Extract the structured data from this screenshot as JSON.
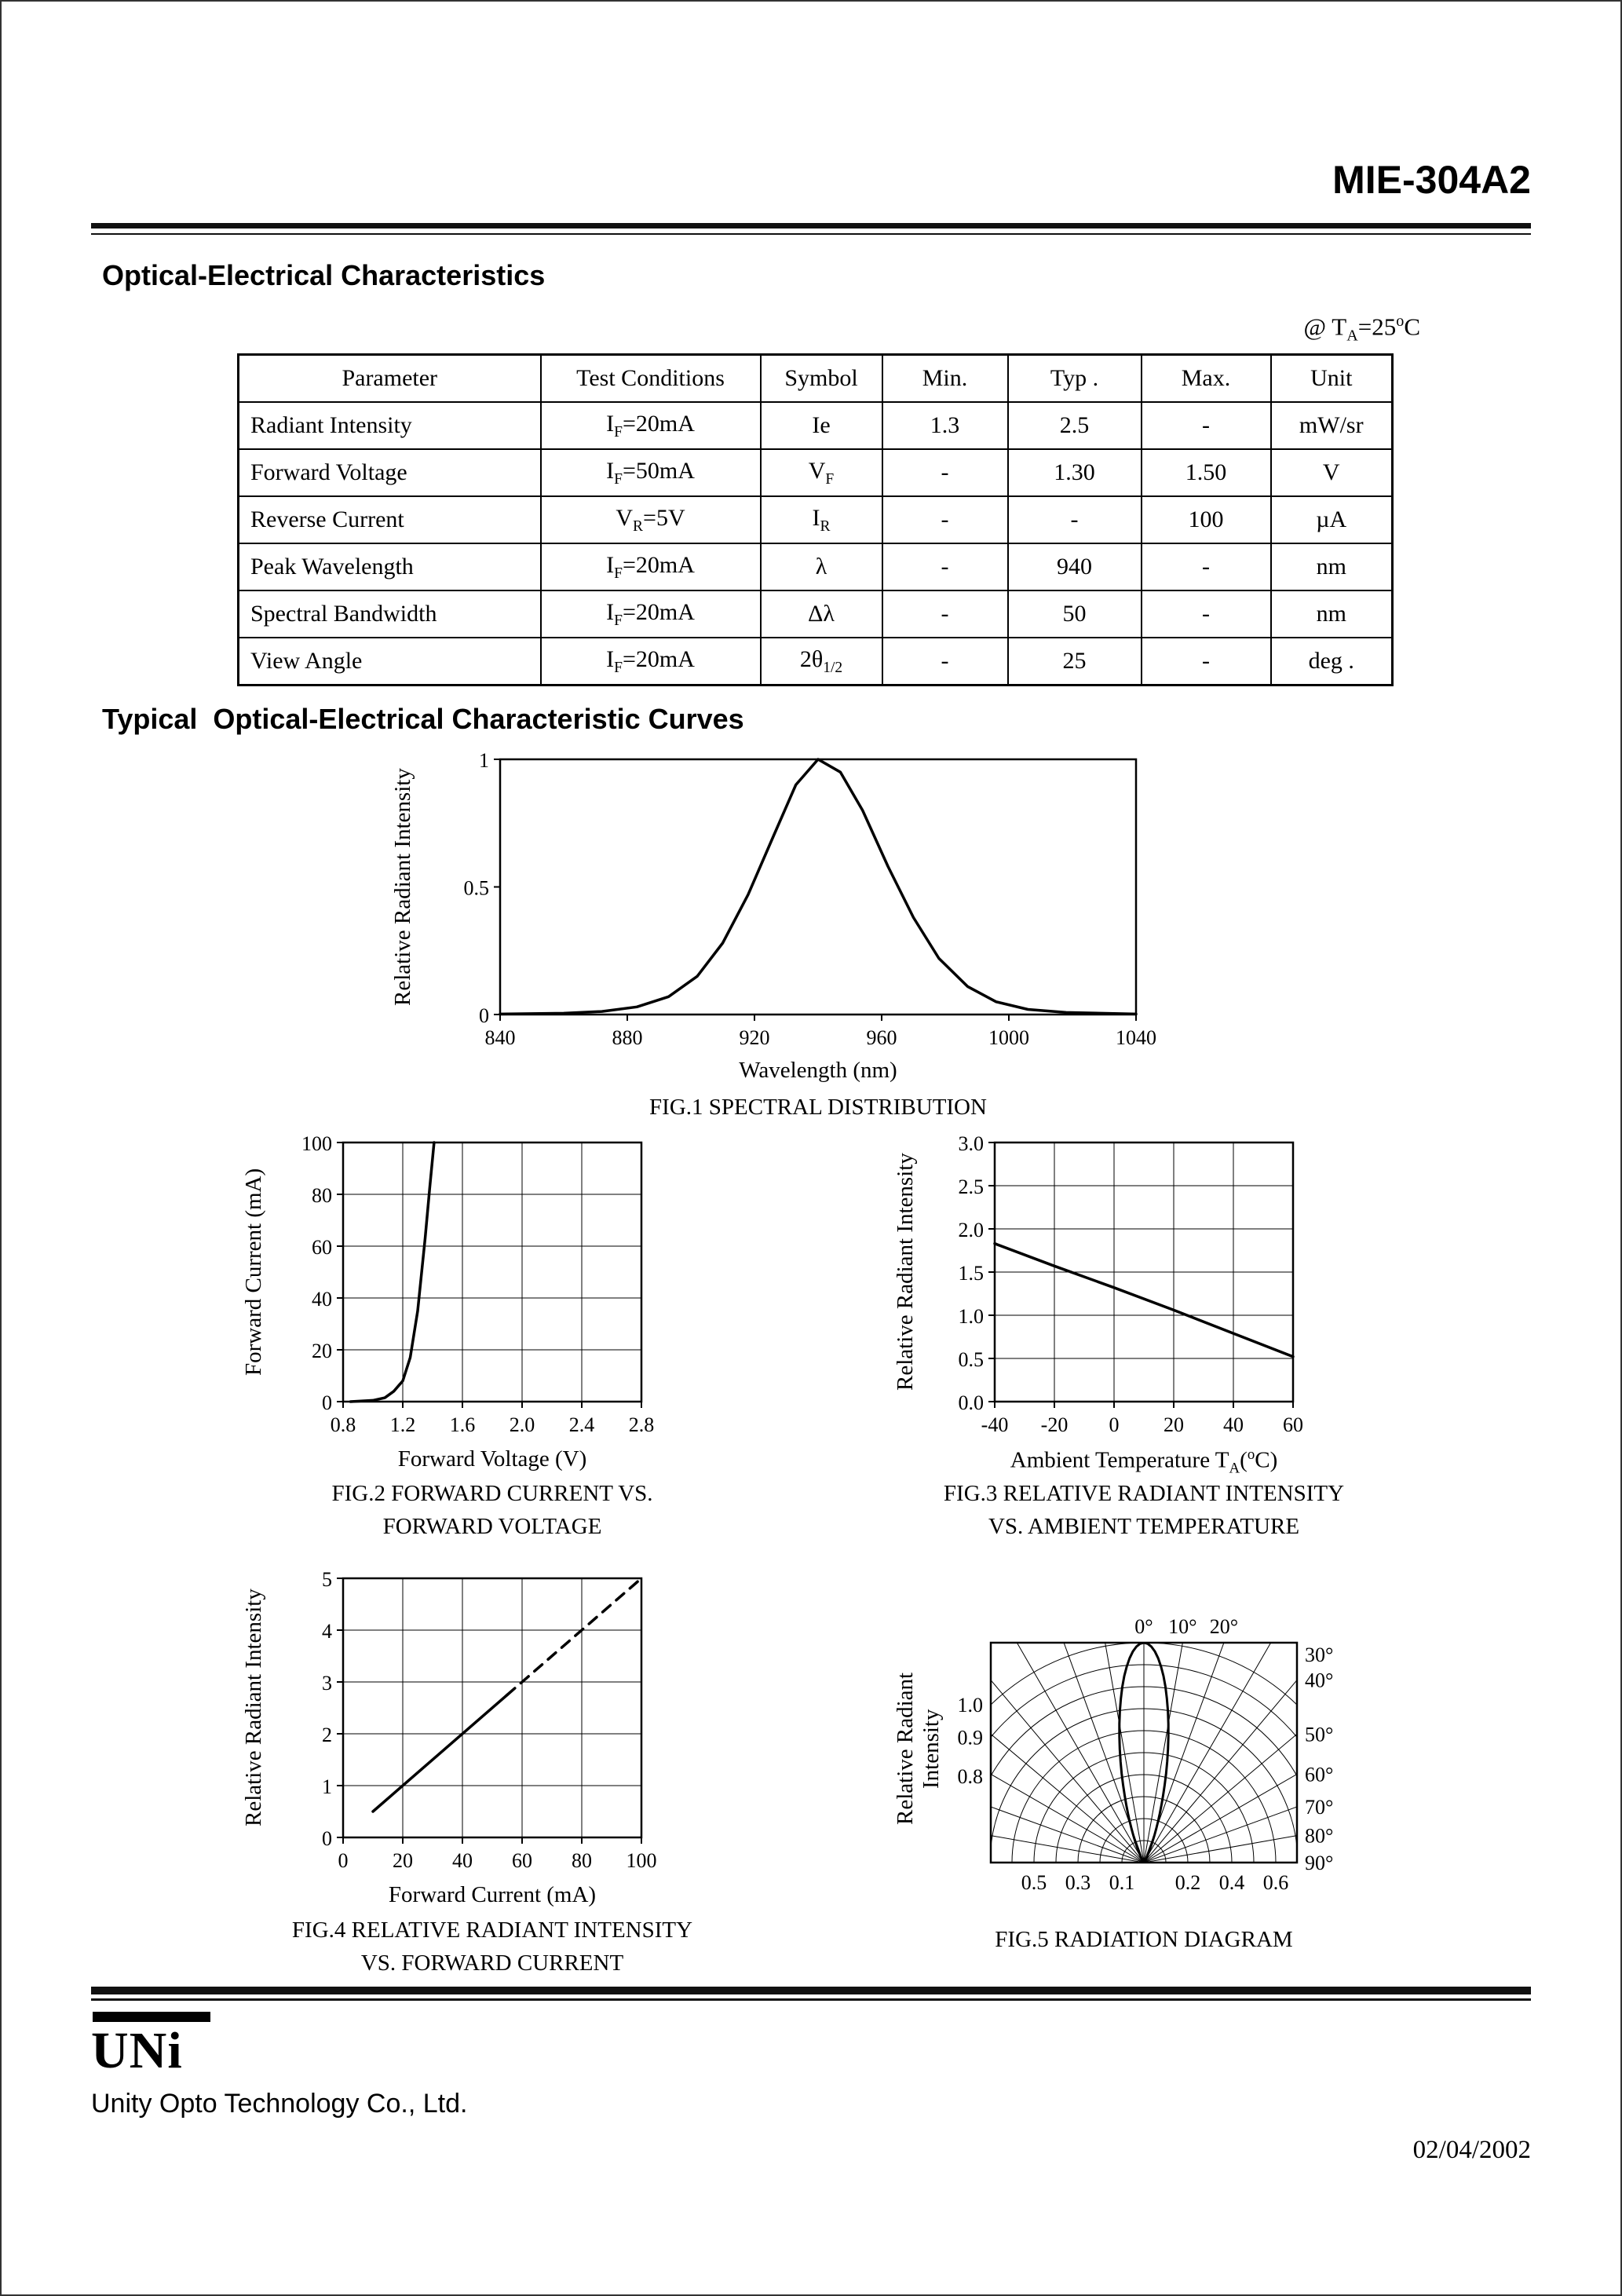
{
  "page": {
    "part_number": "MIE-304A2",
    "section1_title": "Optical-Electrical Characteristics",
    "section2_title": "Typical  Optical-Electrical Characteristic Curves",
    "condition_note": [
      "@ T",
      {
        "sub": "A"
      },
      "=25",
      {
        "sup": "o"
      },
      "C"
    ],
    "footer": {
      "logo_text": "UNi",
      "company": "Unity Opto Technology Co., Ltd.",
      "date": "02/04/2002"
    }
  },
  "table": {
    "headers": [
      "Parameter",
      "Test Conditions",
      "Symbol",
      "Min.",
      "Typ .",
      "Max.",
      "Unit"
    ],
    "rows": [
      [
        [
          "Radiant Intensity"
        ],
        [
          "I",
          {
            "sub": "F"
          },
          "=20mA"
        ],
        [
          "Ie"
        ],
        [
          "1.3"
        ],
        [
          "2.5"
        ],
        [
          "-"
        ],
        [
          "mW/sr"
        ]
      ],
      [
        [
          "Forward Voltage"
        ],
        [
          "I",
          {
            "sub": "F"
          },
          "=50mA"
        ],
        [
          "V",
          {
            "sub": "F"
          }
        ],
        [
          "-"
        ],
        [
          "1.30"
        ],
        [
          "1.50"
        ],
        [
          "V"
        ]
      ],
      [
        [
          "Reverse Current"
        ],
        [
          "V",
          {
            "sub": "R"
          },
          "=5V"
        ],
        [
          "I",
          {
            "sub": "R"
          }
        ],
        [
          "-"
        ],
        [
          "-"
        ],
        [
          "100"
        ],
        [
          "µA"
        ]
      ],
      [
        [
          "Peak Wavelength"
        ],
        [
          "I",
          {
            "sub": "F"
          },
          "=20mA"
        ],
        [
          "λ"
        ],
        [
          "-"
        ],
        [
          "940"
        ],
        [
          "-"
        ],
        [
          "nm"
        ]
      ],
      [
        [
          "Spectral Bandwidth"
        ],
        [
          "I",
          {
            "sub": "F"
          },
          "=20mA"
        ],
        [
          "Δλ"
        ],
        [
          "-"
        ],
        [
          "50"
        ],
        [
          "-"
        ],
        [
          "nm"
        ]
      ],
      [
        [
          "View Angle"
        ],
        [
          "I",
          {
            "sub": "F"
          },
          "=20mA"
        ],
        [
          "2θ",
          {
            "sub": "1/2"
          }
        ],
        [
          "-"
        ],
        [
          "25"
        ],
        [
          "-"
        ],
        [
          "deg ."
        ]
      ]
    ]
  },
  "chart_data": [
    {
      "id": "fig1",
      "type": "line",
      "title": "FIG.1 SPECTRAL DISTRIBUTION",
      "xlabel": "Wavelength (nm)",
      "ylabel": "Relative Radiant Intensity",
      "xlim": [
        840,
        1040
      ],
      "ylim": [
        0,
        1
      ],
      "xticks": [
        "840",
        "880",
        "920",
        "960",
        "1000",
        "1040"
      ],
      "yticks": [
        "0",
        "0.5",
        "1"
      ],
      "grid": false,
      "series": [
        {
          "name": "spectral-distribution",
          "dash": false,
          "points": [
            [
              840,
              0.002
            ],
            [
              860,
              0.005
            ],
            [
              872,
              0.012
            ],
            [
              883,
              0.03
            ],
            [
              893,
              0.07
            ],
            [
              902,
              0.15
            ],
            [
              910,
              0.28
            ],
            [
              918,
              0.47
            ],
            [
              926,
              0.7
            ],
            [
              933,
              0.9
            ],
            [
              940,
              1.0
            ],
            [
              947,
              0.95
            ],
            [
              954,
              0.8
            ],
            [
              962,
              0.58
            ],
            [
              970,
              0.38
            ],
            [
              978,
              0.22
            ],
            [
              987,
              0.11
            ],
            [
              996,
              0.05
            ],
            [
              1006,
              0.02
            ],
            [
              1018,
              0.008
            ],
            [
              1040,
              0.002
            ]
          ]
        }
      ]
    },
    {
      "id": "fig2",
      "type": "line",
      "title": "FIG.2 FORWARD CURRENT VS.",
      "subtitle": "FORWARD VOLTAGE",
      "xlabel": "Forward Voltage (V)",
      "ylabel": "Forward Current (mA)",
      "xlim": [
        0.8,
        2.8
      ],
      "ylim": [
        0,
        100
      ],
      "xticks": [
        "0.8",
        "1.2",
        "1.6",
        "2.0",
        "2.4",
        "2.8"
      ],
      "yticks": [
        "0",
        "20",
        "40",
        "60",
        "80",
        "100"
      ],
      "grid": true,
      "series": [
        {
          "name": "forward-current",
          "dash": false,
          "points": [
            [
              0.85,
              0
            ],
            [
              1.0,
              0.5
            ],
            [
              1.08,
              1.5
            ],
            [
              1.14,
              4
            ],
            [
              1.2,
              8
            ],
            [
              1.25,
              17
            ],
            [
              1.3,
              35
            ],
            [
              1.35,
              63
            ],
            [
              1.38,
              82
            ],
            [
              1.41,
              100
            ]
          ]
        }
      ]
    },
    {
      "id": "fig3",
      "type": "line",
      "title": "FIG.3 RELATIVE RADIANT INTENSITY",
      "subtitle": "VS. AMBIENT TEMPERATURE",
      "xlabel_segments": [
        "Ambient Temperature T",
        {
          "sub": "A"
        },
        "(",
        {
          "sup": "o"
        },
        "C)"
      ],
      "ylabel": "Relative Radiant Intensity",
      "xlim": [
        -40,
        60
      ],
      "ylim": [
        0,
        3
      ],
      "xticks": [
        "-40",
        "-20",
        "0",
        "20",
        "40",
        "60"
      ],
      "yticks": [
        "0.0",
        "0.5",
        "1.0",
        "1.5",
        "2.0",
        "2.5",
        "3.0"
      ],
      "grid": true,
      "series": [
        {
          "name": "intensity-vs-temperature",
          "dash": false,
          "points": [
            [
              -40,
              1.83
            ],
            [
              -20,
              1.57
            ],
            [
              0,
              1.32
            ],
            [
              20,
              1.06
            ],
            [
              40,
              0.79
            ],
            [
              60,
              0.52
            ]
          ]
        }
      ]
    },
    {
      "id": "fig4",
      "type": "line",
      "title": "FIG.4 RELATIVE RADIANT INTENSITY",
      "subtitle": "VS. FORWARD CURRENT",
      "xlabel": "Forward Current (mA)",
      "ylabel": "Relative Radiant Intensity",
      "xlim": [
        0,
        100
      ],
      "ylim": [
        0,
        5
      ],
      "xticks": [
        "0",
        "20",
        "40",
        "60",
        "80",
        "100"
      ],
      "yticks": [
        "0",
        "1",
        "2",
        "3",
        "4",
        "5"
      ],
      "grid": true,
      "series": [
        {
          "name": "intensity-vs-current-solid",
          "dash": false,
          "points": [
            [
              10,
              0.5
            ],
            [
              55,
              2.75
            ]
          ]
        },
        {
          "name": "intensity-vs-current-dashed",
          "dash": true,
          "points": [
            [
              55,
              2.75
            ],
            [
              100,
              5.0
            ]
          ]
        }
      ]
    },
    {
      "id": "fig5",
      "type": "polar",
      "title": "FIG.5 RADIATION DIAGRAM",
      "ylabel": "Relative Radiant Intensity",
      "angle_ticks_top": [
        {
          "label": "0°",
          "deg": 0
        },
        {
          "label": "10°",
          "deg": 10
        },
        {
          "label": "20°",
          "deg": 20
        }
      ],
      "angle_ticks_right": [
        {
          "label": "30°",
          "deg": 30
        },
        {
          "label": "40°",
          "deg": 40
        },
        {
          "label": "50°",
          "deg": 50
        },
        {
          "label": "60°",
          "deg": 60
        },
        {
          "label": "70°",
          "deg": 70
        },
        {
          "label": "80°",
          "deg": 80
        },
        {
          "label": "90°",
          "deg": 90
        }
      ],
      "radius_labels_left": [
        "1.0",
        "0.9",
        "0.8"
      ],
      "baseline_labels_left": [
        "0.5",
        "0.3",
        "0.1"
      ],
      "baseline_labels_right": [
        "0.2",
        "0.4",
        "0.6"
      ],
      "grid_radii": [
        0.1,
        0.2,
        0.3,
        0.4,
        0.5,
        0.6,
        0.7,
        0.8,
        0.9,
        1.0
      ],
      "grid_angle_step_deg": 10,
      "lobe": {
        "half_intensity_angle_deg": 12.5,
        "cosine_exponent": 29
      }
    }
  ]
}
